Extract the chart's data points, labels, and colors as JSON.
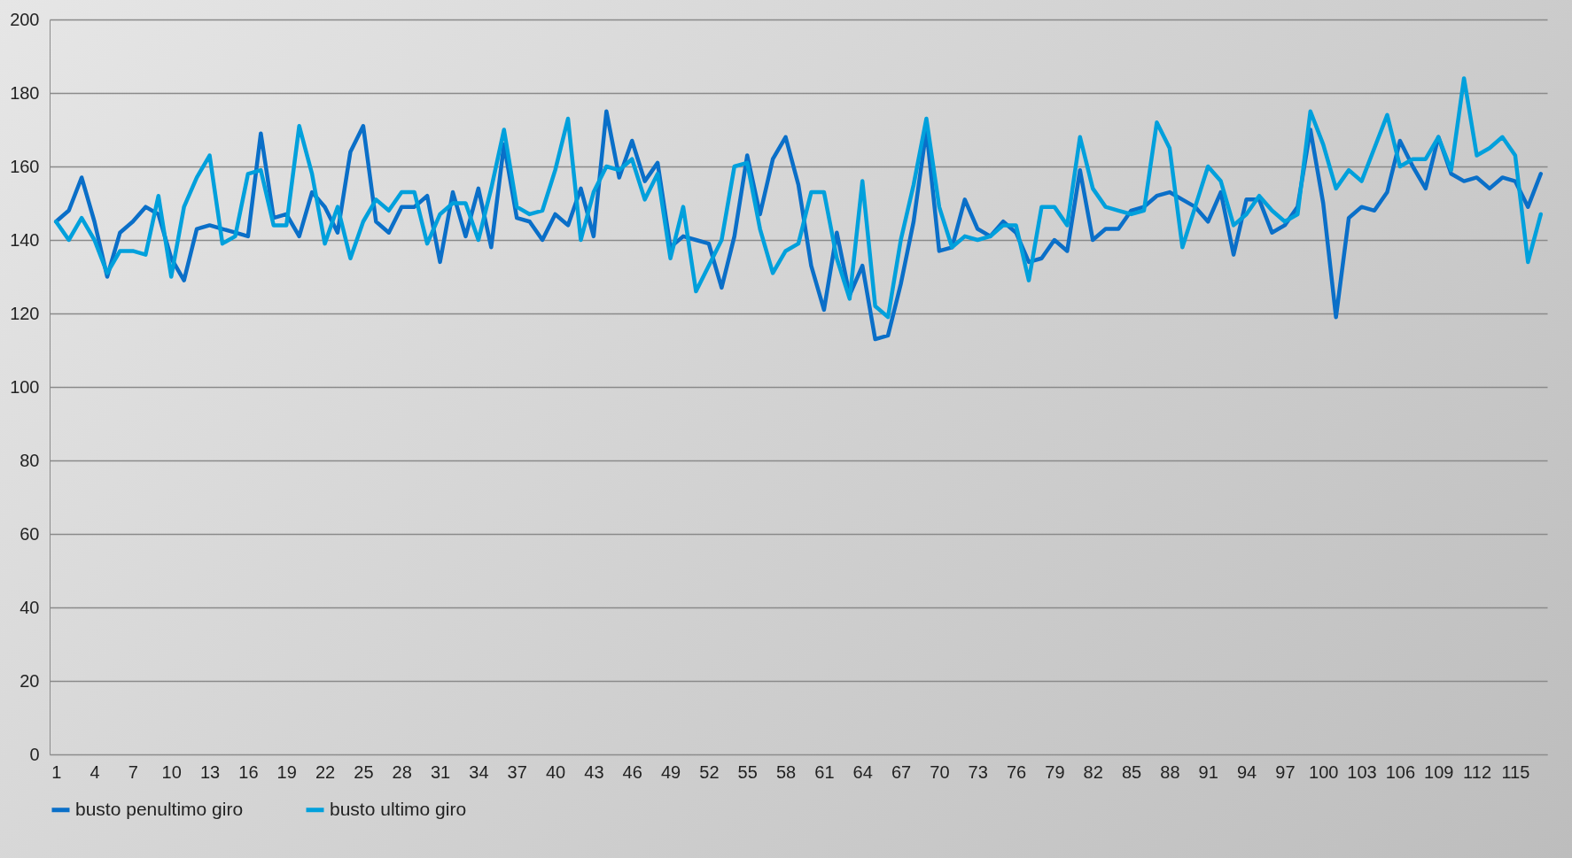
{
  "chart_data": {
    "type": "line",
    "categories": [
      "1",
      null,
      null,
      "4",
      null,
      null,
      "7",
      null,
      null,
      "10",
      null,
      null,
      "13",
      null,
      null,
      "16",
      null,
      null,
      "19",
      null,
      null,
      "22",
      null,
      null,
      "25",
      null,
      null,
      "28",
      null,
      null,
      "31",
      null,
      null,
      "34",
      null,
      null,
      "37",
      null,
      null,
      "40",
      null,
      null,
      "43",
      null,
      null,
      "46",
      null,
      null,
      "49",
      null,
      null,
      "52",
      null,
      null,
      "55",
      null,
      null,
      "58",
      null,
      null,
      "61",
      null,
      null,
      "64",
      null,
      null,
      "67",
      null,
      null,
      "70",
      null,
      null,
      "73",
      null,
      null,
      "76",
      null,
      null,
      "79",
      null,
      null,
      "82",
      null,
      null,
      "85",
      null,
      null,
      "88",
      null,
      null,
      "91",
      null,
      null,
      "94",
      null,
      null,
      "97",
      null,
      null,
      "100",
      null,
      null,
      "103",
      null,
      null,
      "106",
      null,
      null,
      "109",
      null,
      null,
      "112",
      null,
      null,
      "115",
      null,
      null
    ],
    "series": [
      {
        "name": "busto penultimo giro",
        "color": "#0a6fc8",
        "values": [
          145,
          148,
          157,
          145,
          130,
          142,
          145,
          149,
          147,
          135,
          129,
          143,
          144,
          143,
          142,
          141,
          169,
          146,
          147,
          141,
          153,
          149,
          142,
          164,
          171,
          145,
          142,
          149,
          149,
          152,
          134,
          153,
          141,
          154,
          138,
          166,
          146,
          145,
          140,
          147,
          144,
          154,
          141,
          175,
          157,
          167,
          156,
          161,
          138,
          141,
          140,
          139,
          127,
          141,
          163,
          147,
          162,
          168,
          155,
          133,
          121,
          142,
          125,
          133,
          113,
          114,
          128,
          145,
          170,
          137,
          138,
          151,
          143,
          141,
          145,
          142,
          134,
          135,
          140,
          137,
          159,
          140,
          143,
          143,
          148,
          149,
          152,
          153,
          151,
          149,
          145,
          153,
          136,
          151,
          151,
          142,
          144,
          149,
          170,
          150,
          119,
          146,
          149,
          148,
          153,
          167,
          160,
          154,
          168,
          158,
          156,
          157,
          154,
          157,
          156,
          149,
          158
        ]
      },
      {
        "name": "busto ultimo giro",
        "color": "#00a0dc",
        "values": [
          145,
          140,
          146,
          140,
          131,
          137,
          137,
          136,
          152,
          130,
          149,
          157,
          163,
          139,
          141,
          158,
          159,
          144,
          144,
          171,
          158,
          139,
          149,
          135,
          145,
          151,
          148,
          153,
          153,
          139,
          147,
          150,
          150,
          140,
          154,
          170,
          149,
          147,
          148,
          159,
          173,
          140,
          153,
          160,
          159,
          162,
          151,
          158,
          135,
          149,
          126,
          133,
          140,
          160,
          161,
          143,
          131,
          137,
          139,
          153,
          153,
          135,
          124,
          156,
          122,
          119,
          140,
          155,
          173,
          149,
          138,
          141,
          140,
          141,
          144,
          144,
          129,
          149,
          149,
          144,
          168,
          154,
          149,
          148,
          147,
          148,
          172,
          165,
          138,
          149,
          160,
          156,
          144,
          147,
          152,
          148,
          145,
          147,
          175,
          166,
          154,
          159,
          156,
          165,
          174,
          160,
          162,
          162,
          168,
          159,
          184,
          163,
          165,
          168,
          163,
          134,
          147
        ]
      }
    ],
    "ylim": [
      0,
      200
    ],
    "yticks": [
      0,
      20,
      40,
      60,
      80,
      100,
      120,
      140,
      160,
      180,
      200
    ],
    "grid": "y",
    "legend": "bottom",
    "line_style": "solid",
    "marker": "none"
  }
}
